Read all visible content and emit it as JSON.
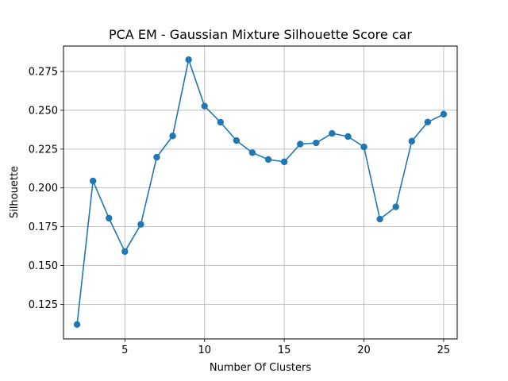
{
  "chart_data": {
    "type": "line",
    "title": "PCA EM - Gaussian Mixture Silhouette Score car",
    "xlabel": "Number Of Clusters",
    "ylabel": "Silhouette",
    "xlim": [
      1.15,
      25.85
    ],
    "ylim": [
      0.1027,
      0.2914
    ],
    "xticks": [
      5,
      10,
      15,
      20,
      25
    ],
    "xtick_labels": [
      "5",
      "10",
      "15",
      "20",
      "25"
    ],
    "yticks": [
      0.125,
      0.15,
      0.175,
      0.2,
      0.225,
      0.25,
      0.275
    ],
    "ytick_labels": [
      "0.125",
      "0.150",
      "0.175",
      "0.200",
      "0.225",
      "0.250",
      "0.275"
    ],
    "grid": true,
    "legend": false,
    "series": [
      {
        "color": "#1f77b4",
        "marker": "circle",
        "x": [
          2,
          3,
          4,
          5,
          6,
          7,
          8,
          9,
          10,
          11,
          12,
          13,
          14,
          15,
          16,
          17,
          18,
          19,
          20,
          21,
          22,
          23,
          24,
          25
        ],
        "y": [
          0.112,
          0.2045,
          0.1805,
          0.159,
          0.1765,
          0.2198,
          0.2335,
          0.2826,
          0.2527,
          0.2423,
          0.2305,
          0.2227,
          0.2183,
          0.2168,
          0.2282,
          0.229,
          0.2351,
          0.2331,
          0.2264,
          0.1799,
          0.1878,
          0.2301,
          0.2424,
          0.2475
        ]
      }
    ]
  }
}
